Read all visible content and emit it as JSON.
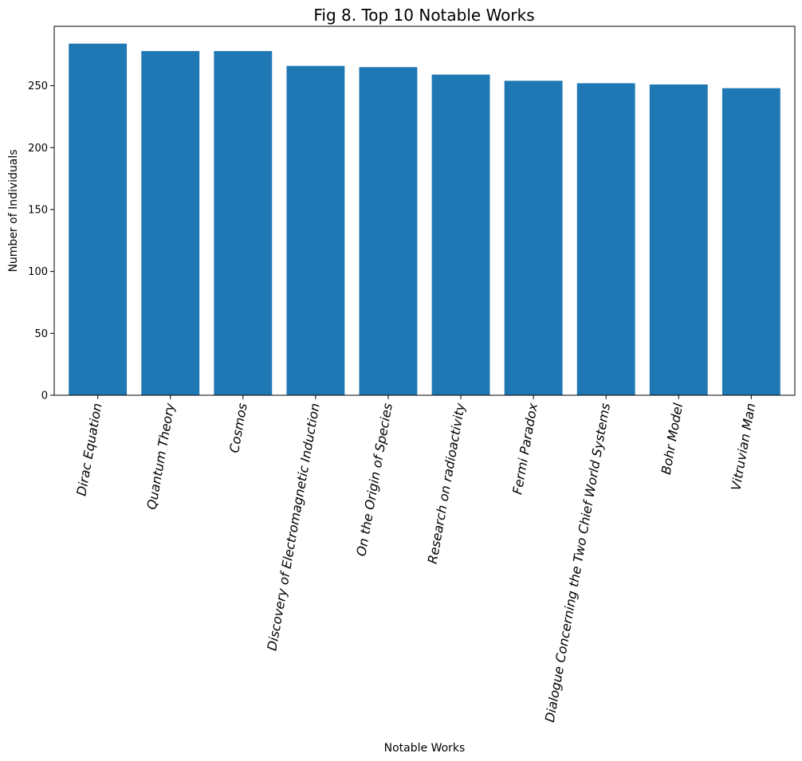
{
  "chart_data": {
    "type": "bar",
    "title": "Fig 8. Top 10 Notable Works",
    "xlabel": "Notable Works",
    "ylabel": "Number of Individuals",
    "categories": [
      "Dirac Equation",
      "Quantum Theory",
      "Cosmos",
      "Discovery of Electromagnetic Induction",
      "On the Origin of Species",
      "Research on radioactivity",
      "Fermi Paradox",
      "Dialogue Concerning the Two Chief World Systems",
      "Bohr Model",
      "Vitruvian Man"
    ],
    "values": [
      284,
      278,
      278,
      266,
      265,
      259,
      254,
      252,
      251,
      248
    ],
    "ylim": [
      0,
      298
    ],
    "yticks": [
      "0",
      "50",
      "100",
      "150",
      "200",
      "250"
    ],
    "bar_color": "#1f77b4",
    "grid": false,
    "x_tick_rotation": "rotated ~80 degrees, italic"
  }
}
